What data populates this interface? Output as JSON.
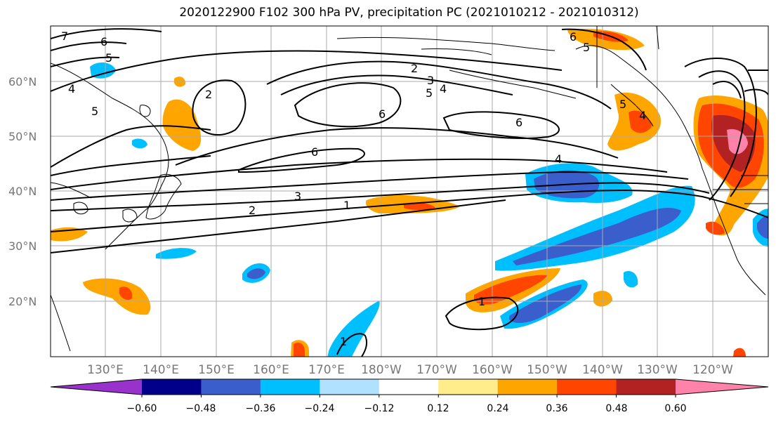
{
  "title": "2020122900 F102 300 hPa PV, precipitation PC (2021010212 - 2021010312)",
  "lat_labels": [
    "60°N",
    "50°N",
    "40°N",
    "30°N",
    "20°N"
  ],
  "lon_labels": [
    "130°E",
    "140°E",
    "150°E",
    "160°E",
    "170°E",
    "180°W",
    "170°W",
    "160°W",
    "150°W",
    "140°W",
    "130°W",
    "120°W"
  ],
  "contour_labels": [
    "7",
    "6",
    "5",
    "4",
    "2",
    "5",
    "2",
    "3",
    "4",
    "5",
    "6",
    "6",
    "6",
    "4",
    "5",
    "4",
    "3",
    "2",
    "1",
    "1",
    "1",
    "6",
    "5"
  ],
  "colorbar": {
    "colors": [
      "#9932cc",
      "#00008b",
      "#3a5fcd",
      "#00bfff",
      "#b0e2ff",
      "#ffffff",
      "#ffec8b",
      "#ffa500",
      "#ff4500",
      "#b22222",
      "#ff82ab"
    ],
    "tick_labels": [
      "−0.60",
      "−0.48",
      "−0.36",
      "−0.24",
      "−0.12",
      "0.12",
      "0.24",
      "0.36",
      "0.48",
      "0.60"
    ]
  }
}
